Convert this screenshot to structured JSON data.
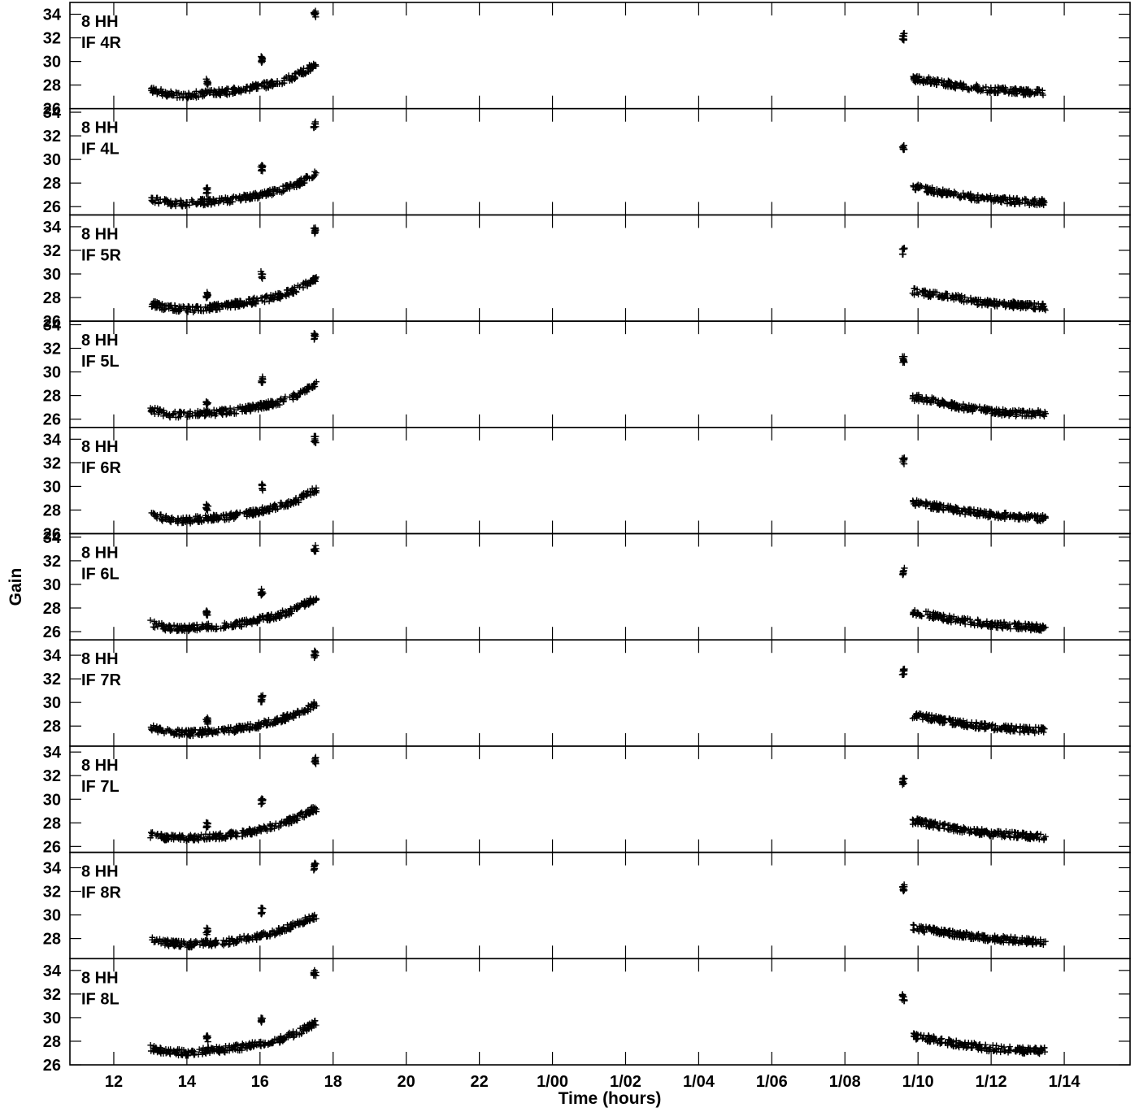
{
  "chart_data": {
    "type": "scatter",
    "xlabel": "Time (hours)",
    "ylabel": "Gain",
    "x_unit": "hours",
    "xlim": [
      10.8,
      39.8
    ],
    "x_ticks": [
      {
        "value": 12,
        "label": "12"
      },
      {
        "value": 14,
        "label": "14"
      },
      {
        "value": 16,
        "label": "16"
      },
      {
        "value": 18,
        "label": "18"
      },
      {
        "value": 20,
        "label": "20"
      },
      {
        "value": 22,
        "label": "22"
      },
      {
        "value": 24,
        "label": "1/00"
      },
      {
        "value": 26,
        "label": "1/02"
      },
      {
        "value": 28,
        "label": "1/04"
      },
      {
        "value": 30,
        "label": "1/06"
      },
      {
        "value": 32,
        "label": "1/08"
      },
      {
        "value": 34,
        "label": "1/10"
      },
      {
        "value": 36,
        "label": "1/12"
      },
      {
        "value": 38,
        "label": "1/14"
      }
    ],
    "marker": "+",
    "marker_color": "#000000",
    "grid": false,
    "panels": [
      {
        "label": [
          "8 HH",
          "IF 4R"
        ],
        "ylim": [
          26.0,
          35.0
        ],
        "y_ticks": [
          26,
          28,
          30,
          32,
          34
        ],
        "x": [
          13.0,
          13.5,
          14.0,
          14.5,
          15.0,
          15.5,
          16.0,
          16.5,
          17.0,
          17.5,
          34.0,
          34.5,
          35.0,
          35.5,
          36.0,
          36.5,
          37.0,
          37.5
        ],
        "y": [
          27.6,
          27.2,
          27.1,
          27.3,
          27.4,
          27.6,
          27.9,
          28.2,
          28.8,
          29.7,
          28.5,
          28.3,
          28.0,
          27.8,
          27.6,
          27.5,
          27.4,
          27.4
        ],
        "outliers": {
          "x": [
            14.55,
            16.05,
            17.5,
            33.6
          ],
          "y": [
            28.3,
            30.2,
            34.0,
            32.1
          ]
        }
      },
      {
        "label": [
          "8 HH",
          "IF 4L"
        ],
        "ylim": [
          25.3,
          34.3
        ],
        "y_ticks": [
          26,
          28,
          30,
          32,
          34
        ],
        "x": [
          13.0,
          13.5,
          14.0,
          14.5,
          15.0,
          15.5,
          16.0,
          16.5,
          17.0,
          17.5,
          34.0,
          34.5,
          35.0,
          35.5,
          36.0,
          36.5,
          37.0,
          37.5
        ],
        "y": [
          26.7,
          26.3,
          26.3,
          26.4,
          26.5,
          26.7,
          27.0,
          27.3,
          27.9,
          28.7,
          27.6,
          27.3,
          27.0,
          26.8,
          26.7,
          26.5,
          26.4,
          26.4
        ],
        "outliers": {
          "x": [
            14.55,
            16.05,
            17.5,
            33.6
          ],
          "y": [
            27.4,
            29.3,
            32.9,
            31.0
          ]
        }
      },
      {
        "label": [
          "8 HH",
          "IF 5R"
        ],
        "ylim": [
          26.0,
          35.0
        ],
        "y_ticks": [
          26,
          28,
          30,
          32,
          34
        ],
        "x": [
          13.0,
          13.5,
          14.0,
          14.5,
          15.0,
          15.5,
          16.0,
          16.5,
          17.0,
          17.5,
          34.0,
          34.5,
          35.0,
          35.5,
          36.0,
          36.5,
          37.0,
          37.5
        ],
        "y": [
          27.5,
          27.1,
          27.0,
          27.1,
          27.3,
          27.5,
          27.8,
          28.1,
          28.7,
          29.6,
          28.5,
          28.2,
          28.0,
          27.7,
          27.5,
          27.4,
          27.3,
          27.2
        ],
        "outliers": {
          "x": [
            14.55,
            16.05,
            17.5,
            33.6
          ],
          "y": [
            28.2,
            29.9,
            33.7,
            31.9
          ]
        }
      },
      {
        "label": [
          "8 HH",
          "IF 5L"
        ],
        "ylim": [
          25.3,
          34.3
        ],
        "y_ticks": [
          26,
          28,
          30,
          32,
          34
        ],
        "x": [
          13.0,
          13.5,
          14.0,
          14.5,
          15.0,
          15.5,
          16.0,
          16.5,
          17.0,
          17.5,
          34.0,
          34.5,
          35.0,
          35.5,
          36.0,
          36.5,
          37.0,
          37.5
        ],
        "y": [
          26.8,
          26.4,
          26.4,
          26.5,
          26.6,
          26.8,
          27.1,
          27.4,
          28.0,
          28.9,
          27.8,
          27.5,
          27.1,
          26.9,
          26.7,
          26.5,
          26.5,
          26.5
        ],
        "outliers": {
          "x": [
            14.55,
            16.05,
            17.5,
            33.6
          ],
          "y": [
            27.5,
            29.3,
            33.0,
            31.1
          ]
        }
      },
      {
        "label": [
          "8 HH",
          "IF 6R"
        ],
        "ylim": [
          26.0,
          35.0
        ],
        "y_ticks": [
          26,
          28,
          30,
          32,
          34
        ],
        "x": [
          13.0,
          13.5,
          14.0,
          14.5,
          15.0,
          15.5,
          16.0,
          16.5,
          17.0,
          17.5,
          34.0,
          34.5,
          35.0,
          35.5,
          36.0,
          36.5,
          37.0,
          37.5
        ],
        "y": [
          27.6,
          27.2,
          27.1,
          27.3,
          27.4,
          27.6,
          27.9,
          28.3,
          28.8,
          29.7,
          28.6,
          28.3,
          28.0,
          27.8,
          27.6,
          27.5,
          27.4,
          27.3
        ],
        "outliers": {
          "x": [
            14.55,
            16.05,
            17.5,
            33.6
          ],
          "y": [
            28.2,
            29.9,
            34.0,
            32.2
          ]
        }
      },
      {
        "label": [
          "8 HH",
          "IF 6L"
        ],
        "ylim": [
          25.3,
          34.3
        ],
        "y_ticks": [
          26,
          28,
          30,
          32,
          34
        ],
        "x": [
          13.0,
          13.5,
          14.0,
          14.5,
          15.0,
          15.5,
          16.0,
          16.5,
          17.0,
          17.5,
          34.0,
          34.5,
          35.0,
          35.5,
          36.0,
          36.5,
          37.0,
          37.5
        ],
        "y": [
          26.7,
          26.3,
          26.3,
          26.4,
          26.5,
          26.7,
          27.0,
          27.4,
          27.9,
          28.8,
          27.6,
          27.3,
          27.0,
          26.8,
          26.6,
          26.5,
          26.4,
          26.3
        ],
        "outliers": {
          "x": [
            14.55,
            16.05,
            17.5,
            33.6
          ],
          "y": [
            27.5,
            29.3,
            33.0,
            31.1
          ]
        }
      },
      {
        "label": [
          "8 HH",
          "IF 7R"
        ],
        "ylim": [
          26.3,
          35.3
        ],
        "y_ticks": [
          28,
          30,
          32,
          34
        ],
        "x": [
          13.0,
          13.5,
          14.0,
          14.5,
          15.0,
          15.5,
          16.0,
          16.5,
          17.0,
          17.5,
          34.0,
          34.5,
          35.0,
          35.5,
          36.0,
          36.5,
          37.0,
          37.5
        ],
        "y": [
          27.9,
          27.5,
          27.4,
          27.5,
          27.6,
          27.8,
          28.1,
          28.5,
          29.0,
          29.8,
          28.9,
          28.6,
          28.3,
          28.1,
          27.9,
          27.8,
          27.7,
          27.6
        ],
        "outliers": {
          "x": [
            14.55,
            16.05,
            17.5,
            33.6
          ],
          "y": [
            28.4,
            30.3,
            34.1,
            32.6
          ]
        }
      },
      {
        "label": [
          "8 HH",
          "IF 7L"
        ],
        "ylim": [
          25.5,
          34.5
        ],
        "y_ticks": [
          26,
          28,
          30,
          32,
          34
        ],
        "x": [
          13.0,
          13.5,
          14.0,
          14.5,
          15.0,
          15.5,
          16.0,
          16.5,
          17.0,
          17.5,
          34.0,
          34.5,
          35.0,
          35.5,
          36.0,
          36.5,
          37.0,
          37.5
        ],
        "y": [
          27.0,
          26.7,
          26.7,
          26.8,
          26.9,
          27.1,
          27.4,
          27.8,
          28.4,
          29.2,
          28.1,
          27.8,
          27.5,
          27.3,
          27.1,
          27.0,
          26.9,
          26.8
        ],
        "outliers": {
          "x": [
            14.55,
            16.05,
            17.5,
            33.6
          ],
          "y": [
            27.8,
            29.8,
            33.3,
            31.5
          ]
        }
      },
      {
        "label": [
          "8 HH",
          "IF 8R"
        ],
        "ylim": [
          26.3,
          35.3
        ],
        "y_ticks": [
          28,
          30,
          32,
          34
        ],
        "x": [
          13.0,
          13.5,
          14.0,
          14.5,
          15.0,
          15.5,
          16.0,
          16.5,
          17.0,
          17.5,
          34.0,
          34.5,
          35.0,
          35.5,
          36.0,
          36.5,
          37.0,
          37.5
        ],
        "y": [
          28.0,
          27.6,
          27.5,
          27.6,
          27.7,
          27.9,
          28.2,
          28.6,
          29.2,
          29.9,
          28.9,
          28.6,
          28.4,
          28.2,
          28.0,
          27.9,
          27.8,
          27.6
        ],
        "outliers": {
          "x": [
            14.55,
            16.05,
            17.5,
            33.6
          ],
          "y": [
            28.6,
            30.3,
            34.1,
            32.3
          ]
        }
      },
      {
        "label": [
          "8 HH",
          "IF 8L"
        ],
        "ylim": [
          26.0,
          35.0
        ],
        "y_ticks": [
          26,
          28,
          30,
          32,
          34
        ],
        "x": [
          13.0,
          13.5,
          14.0,
          14.5,
          15.0,
          15.5,
          16.0,
          16.5,
          17.0,
          17.5,
          34.0,
          34.5,
          35.0,
          35.5,
          36.0,
          36.5,
          37.0,
          37.5
        ],
        "y": [
          27.4,
          27.1,
          27.0,
          27.2,
          27.3,
          27.5,
          27.8,
          28.1,
          28.7,
          29.5,
          28.4,
          28.1,
          27.8,
          27.6,
          27.4,
          27.3,
          27.2,
          27.2
        ],
        "outliers": {
          "x": [
            14.55,
            16.05,
            17.5,
            33.6
          ],
          "y": [
            28.2,
            29.9,
            33.7,
            31.7
          ]
        }
      }
    ]
  }
}
